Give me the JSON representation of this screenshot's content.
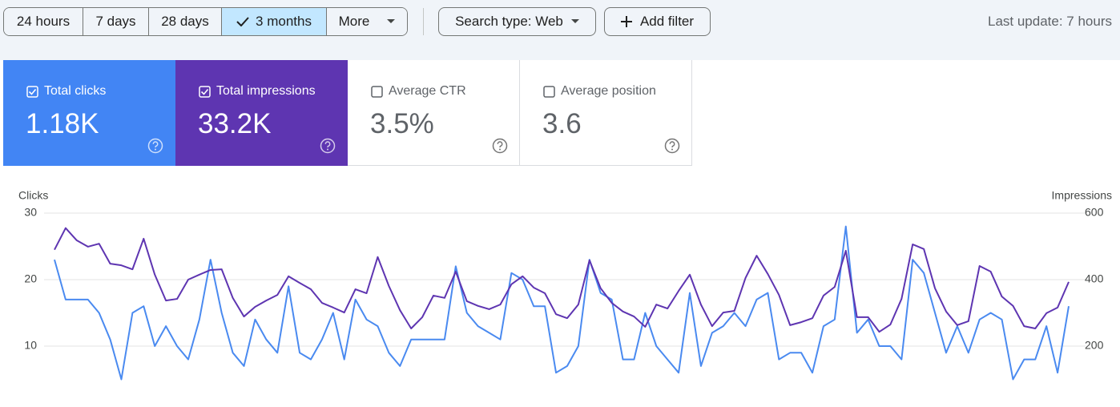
{
  "toolbar": {
    "ranges": [
      "24 hours",
      "7 days",
      "28 days",
      "3 months",
      "More"
    ],
    "selected": 3,
    "search_type": "Search type: Web",
    "add_filter": "Add filter",
    "last_update": "Last update: 7 hours"
  },
  "metrics": [
    {
      "label": "Total clicks",
      "value": "1.18K",
      "checked": true,
      "color": "#4285f4"
    },
    {
      "label": "Total impressions",
      "value": "33.2K",
      "checked": true,
      "color": "#5e35b1"
    },
    {
      "label": "Average CTR",
      "value": "3.5%",
      "checked": false,
      "color": "#ffffff"
    },
    {
      "label": "Average position",
      "value": "3.6",
      "checked": false,
      "color": "#ffffff"
    }
  ],
  "chart_data": {
    "type": "line",
    "ylabel": "Clicks",
    "y2label": "Impressions",
    "ylim": [
      0,
      30
    ],
    "yticks": [
      10,
      20,
      30
    ],
    "y2lim": [
      0,
      600
    ],
    "y2ticks": [
      200,
      400,
      600
    ],
    "grid": true,
    "series": [
      {
        "name": "Clicks",
        "color": "#4a8af0",
        "values": [
          23,
          17,
          17,
          17,
          15,
          11,
          5,
          15,
          16,
          10,
          13,
          10,
          8,
          14,
          23,
          15,
          9,
          7,
          14,
          11,
          9,
          19,
          9,
          8,
          11,
          15,
          8,
          17,
          14,
          13,
          9,
          7,
          11,
          11,
          11,
          11,
          22,
          15,
          13,
          12,
          11,
          21,
          20,
          16,
          16,
          6,
          7,
          10,
          23,
          18,
          17,
          8,
          8,
          15,
          10,
          8,
          6,
          18,
          7,
          12,
          13,
          15,
          13,
          17,
          18,
          8,
          9,
          9,
          6,
          13,
          14,
          28,
          12,
          14,
          10,
          10,
          8,
          23,
          21,
          15,
          9,
          13,
          9,
          14,
          15,
          14,
          5,
          8,
          8,
          13,
          6,
          16
        ]
      },
      {
        "name": "Impressions",
        "color": "#5e35b1",
        "axis": "y2",
        "values": [
          490,
          555,
          518,
          499,
          508,
          448,
          443,
          431,
          523,
          415,
          337,
          342,
          400,
          415,
          429,
          431,
          345,
          289,
          318,
          337,
          354,
          410,
          390,
          371,
          330,
          316,
          301,
          371,
          359,
          468,
          381,
          308,
          253,
          287,
          352,
          345,
          424,
          335,
          321,
          311,
          325,
          386,
          410,
          376,
          359,
          296,
          284,
          325,
          458,
          374,
          330,
          304,
          289,
          258,
          325,
          313,
          366,
          415,
          325,
          260,
          301,
          306,
          405,
          472,
          417,
          354,
          263,
          272,
          284,
          352,
          378,
          487,
          287,
          287,
          243,
          265,
          342,
          506,
          492,
          374,
          304,
          263,
          275,
          441,
          424,
          349,
          321,
          260,
          253,
          299,
          316,
          393
        ]
      }
    ]
  }
}
